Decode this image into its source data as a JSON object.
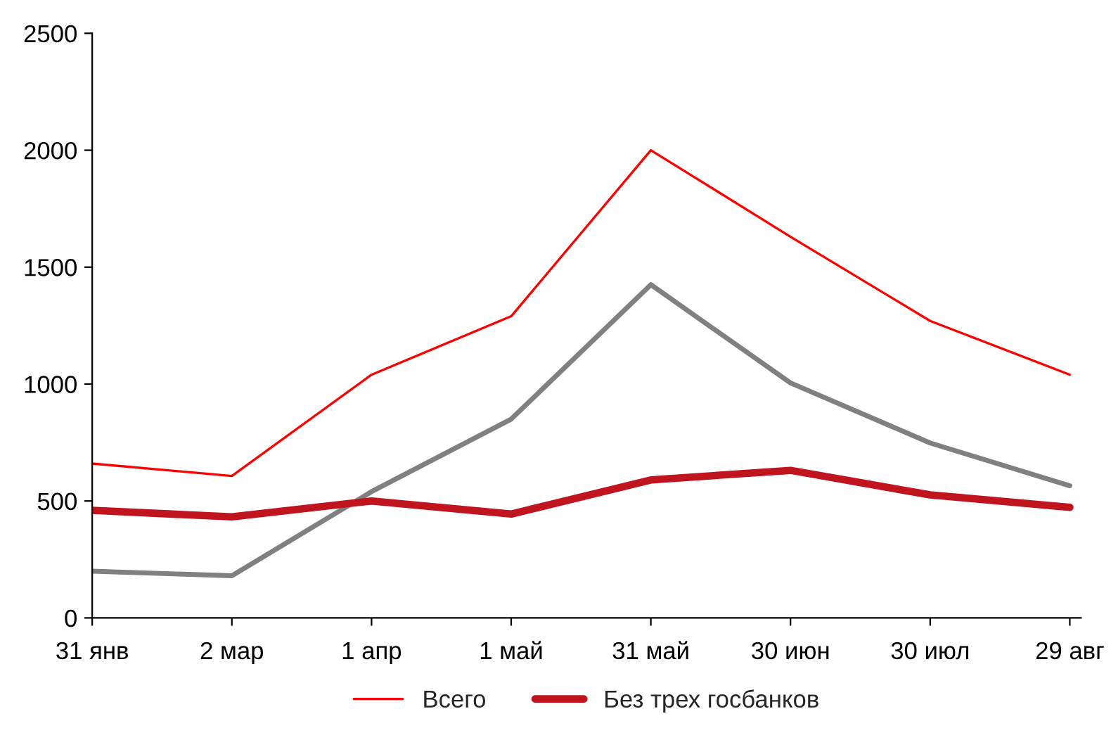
{
  "chart_data": {
    "type": "line",
    "categories": [
      "31 янв",
      "2 мар",
      "1 апр",
      "1 май",
      "31 май",
      "30 июн",
      "30 июл",
      "29 авг"
    ],
    "series": [
      {
        "name": "Всего",
        "color": "#ff0000",
        "values": [
          660,
          607,
          1040,
          1290,
          2000,
          1630,
          1270,
          1040
        ]
      },
      {
        "color": "#808080",
        "values": [
          200,
          180,
          540,
          850,
          1425,
          1005,
          748,
          565
        ]
      },
      {
        "name": "Без трех госбанков",
        "color": "#c0141e",
        "values": [
          460,
          432,
          500,
          444,
          590,
          631,
          526,
          473
        ]
      }
    ],
    "ylim": [
      0,
      2500
    ],
    "yticks": [
      0,
      500,
      1000,
      1500,
      2000,
      2500
    ],
    "grid": false,
    "legend": "bottom",
    "marker": "none",
    "line_style": "solid"
  }
}
